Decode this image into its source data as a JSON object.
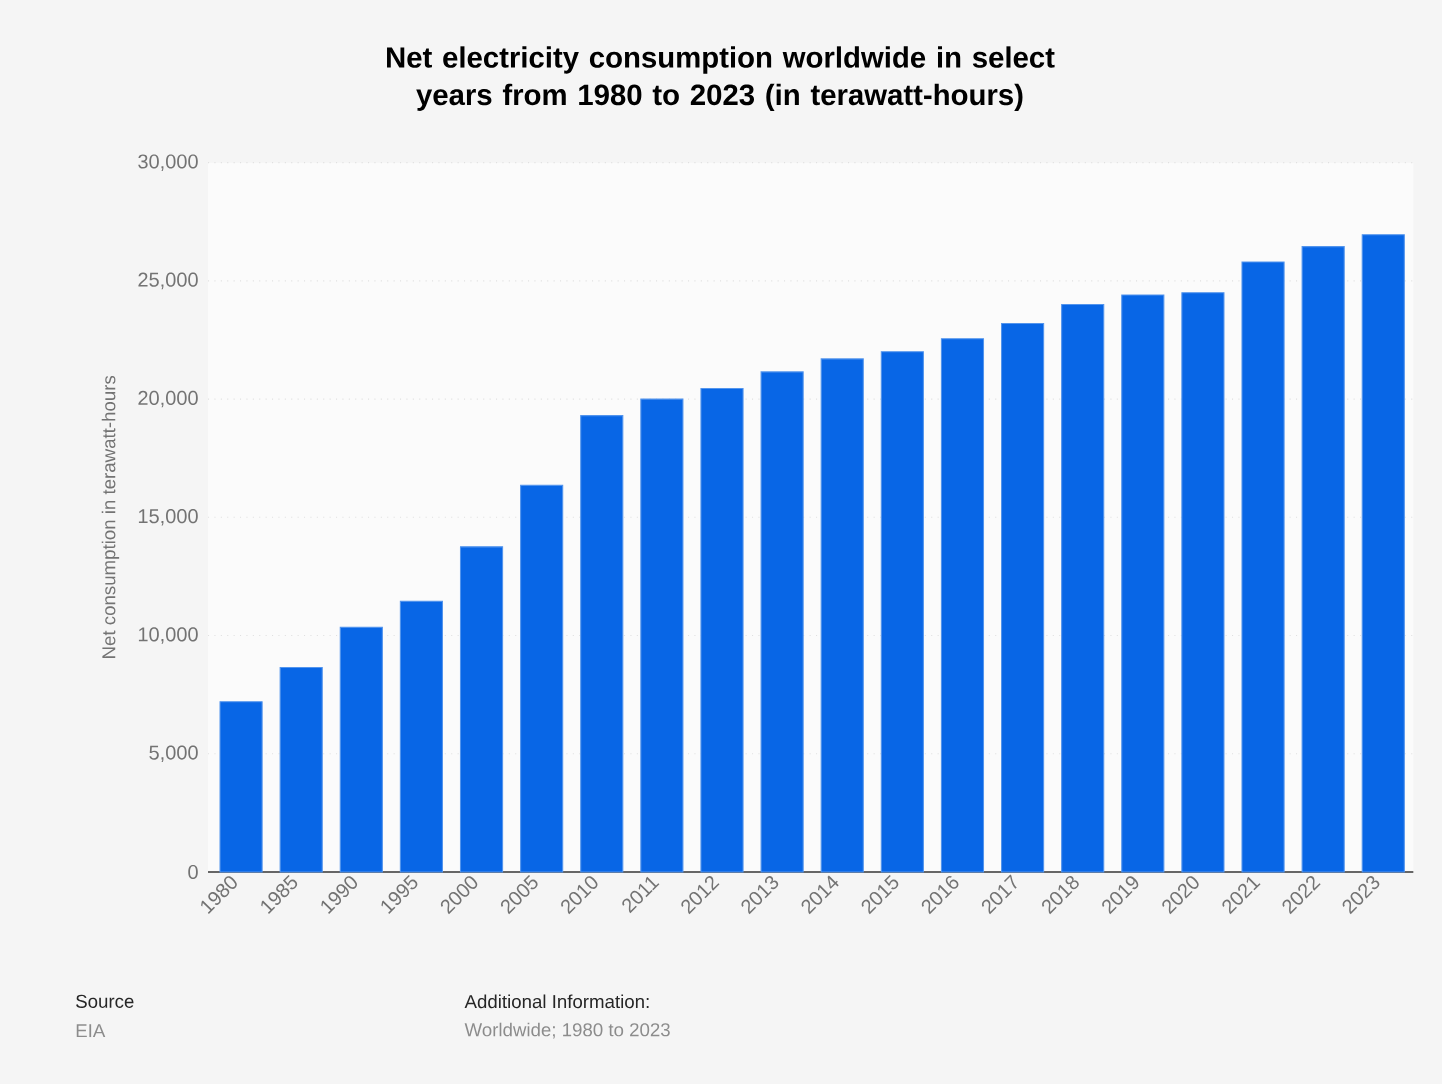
{
  "chart_data": {
    "type": "bar",
    "title": "Net electricity consumption worldwide in select years from 1980 to 2023 (in terawatt-hours)",
    "ylabel": "Net consumption in terawatt-hours",
    "categories": [
      "1980",
      "1985",
      "1990",
      "1995",
      "2000",
      "2005",
      "2010",
      "2011",
      "2012",
      "2013",
      "2014",
      "2015",
      "2016",
      "2017",
      "2018",
      "2019",
      "2020",
      "2021",
      "2022",
      "2023"
    ],
    "values": [
      7200,
      8650,
      10350,
      11450,
      13750,
      16350,
      19300,
      20000,
      20450,
      21150,
      21700,
      22000,
      22550,
      23200,
      24000,
      24400,
      24500,
      25800,
      26450,
      26950
    ],
    "color": "#0866e6",
    "ylim": [
      0,
      30000
    ],
    "yticks": [
      0,
      {
        "value": 5000,
        "label": "5,000"
      },
      {
        "value": 10000,
        "label": "10,000"
      },
      {
        "value": 15000,
        "label": "15,000"
      },
      {
        "value": 20000,
        "label": "20,000"
      },
      {
        "value": 25000,
        "label": "25,000"
      },
      {
        "value": 30000,
        "label": "30,000"
      }
    ],
    "grid": "y",
    "annotations": [
      "Source",
      "EIA",
      "Additional Information:",
      "Worldwide; 1980 to 2023"
    ]
  }
}
